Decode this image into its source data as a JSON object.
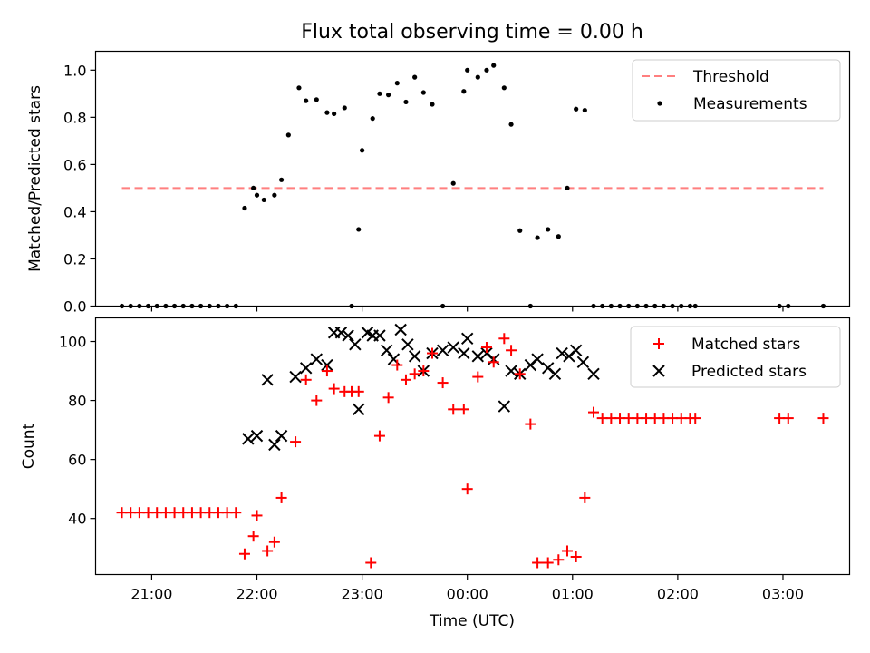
{
  "chart_data": [
    {
      "type": "scatter",
      "title": "Flux total observing time = 0.00 h",
      "xlabel": "",
      "ylabel": "Matched/Predicted stars",
      "ylim": [
        0,
        1.08
      ],
      "yticks": [
        0.0,
        0.2,
        0.4,
        0.6,
        0.8,
        1.0
      ],
      "ytick_labels": [
        "0.0",
        "0.2",
        "0.4",
        "0.6",
        "0.8",
        "1.0"
      ],
      "legend_position": "top-right",
      "threshold": {
        "name": "Threshold",
        "color": "#ff7f7f",
        "style": "dashed",
        "x_start": "20:43",
        "x_end": "03:23",
        "value": 0.5
      },
      "series": [
        {
          "name": "Measurements",
          "color": "#000000",
          "marker": "dot",
          "x": [
            "20:43",
            "20:48",
            "20:53",
            "20:58",
            "21:03",
            "21:08",
            "21:13",
            "21:18",
            "21:23",
            "21:28",
            "21:33",
            "21:38",
            "21:43",
            "21:48",
            "21:53",
            "21:58",
            "22:00",
            "22:04",
            "22:10",
            "22:14",
            "22:18",
            "22:24",
            "22:28",
            "22:34",
            "22:40",
            "22:44",
            "22:50",
            "22:54",
            "22:58",
            "23:00",
            "23:06",
            "23:10",
            "23:15",
            "23:20",
            "23:25",
            "23:30",
            "23:35",
            "23:40",
            "23:46",
            "23:52",
            "23:58",
            "00:00",
            "00:06",
            "00:11",
            "00:15",
            "00:21",
            "00:25",
            "00:30",
            "00:36",
            "00:40",
            "00:46",
            "00:52",
            "00:57",
            "01:02",
            "01:07",
            "01:12",
            "01:17",
            "01:22",
            "01:27",
            "01:32",
            "01:37",
            "01:42",
            "01:47",
            "01:52",
            "01:57",
            "02:02",
            "02:07",
            "02:10",
            "02:58",
            "03:03",
            "03:23"
          ],
          "y": [
            0.0,
            0.0,
            0.0,
            0.0,
            0.0,
            0.0,
            0.0,
            0.0,
            0.0,
            0.0,
            0.0,
            0.0,
            0.0,
            0.0,
            0.415,
            0.5,
            0.47,
            0.45,
            0.47,
            0.535,
            0.725,
            0.925,
            0.87,
            0.875,
            0.82,
            0.815,
            0.84,
            0.0,
            0.325,
            0.66,
            0.795,
            0.9,
            0.895,
            0.945,
            0.865,
            0.97,
            0.905,
            0.855,
            0.0,
            0.52,
            0.91,
            1.0,
            0.97,
            1.0,
            1.02,
            0.925,
            0.77,
            0.32,
            0.0,
            0.29,
            0.325,
            0.295,
            0.5,
            0.835,
            0.83,
            0.0,
            0.0,
            0.0,
            0.0,
            0.0,
            0.0,
            0.0,
            0.0,
            0.0,
            0.0,
            0.0,
            0.0,
            0.0,
            0.0,
            0.0,
            0.0
          ]
        }
      ]
    },
    {
      "type": "scatter",
      "title": "",
      "xlabel": "Time (UTC)",
      "ylabel": "Count",
      "ylim": [
        21,
        108
      ],
      "yticks": [
        40,
        60,
        80,
        100
      ],
      "ytick_labels": [
        "40",
        "60",
        "80",
        "100"
      ],
      "xticks": [
        "21:00",
        "22:00",
        "23:00",
        "00:00",
        "01:00",
        "02:00",
        "03:00"
      ],
      "legend_position": "top-right",
      "series": [
        {
          "name": "Matched stars",
          "color": "#ff0000",
          "marker": "plus",
          "x": [
            "20:43",
            "20:48",
            "20:53",
            "20:58",
            "21:03",
            "21:08",
            "21:13",
            "21:18",
            "21:23",
            "21:28",
            "21:33",
            "21:38",
            "21:43",
            "21:48",
            "21:53",
            "21:58",
            "22:00",
            "22:06",
            "22:10",
            "22:14",
            "22:22",
            "22:28",
            "22:34",
            "22:40",
            "22:44",
            "22:50",
            "22:54",
            "22:58",
            "23:05",
            "23:10",
            "23:15",
            "23:20",
            "23:25",
            "23:30",
            "23:35",
            "23:40",
            "23:46",
            "23:52",
            "23:58",
            "00:00",
            "00:06",
            "00:11",
            "00:15",
            "00:21",
            "00:25",
            "00:30",
            "00:36",
            "00:40",
            "00:46",
            "00:52",
            "00:57",
            "01:02",
            "01:07",
            "01:12",
            "01:17",
            "01:22",
            "01:27",
            "01:32",
            "01:37",
            "01:42",
            "01:47",
            "01:52",
            "01:57",
            "02:02",
            "02:07",
            "02:10",
            "02:58",
            "03:03",
            "03:23"
          ],
          "y": [
            42,
            42,
            42,
            42,
            42,
            42,
            42,
            42,
            42,
            42,
            42,
            42,
            42,
            42,
            28,
            34,
            41,
            29,
            32,
            47,
            66,
            87,
            80,
            90,
            84,
            83,
            83,
            83,
            25,
            68,
            81,
            92,
            87,
            89,
            90,
            96,
            86,
            77,
            77,
            50,
            88,
            98,
            93,
            101,
            97,
            89,
            72,
            25,
            25,
            26,
            29,
            27,
            47,
            76,
            74,
            74,
            74,
            74,
            74,
            74,
            74,
            74,
            74,
            74,
            74,
            74,
            74,
            74,
            74
          ]
        },
        {
          "name": "Predicted stars",
          "color": "#000000",
          "marker": "x",
          "x": [
            "21:55",
            "22:00",
            "22:06",
            "22:10",
            "22:14",
            "22:22",
            "22:28",
            "22:34",
            "22:40",
            "22:44",
            "22:48",
            "22:52",
            "22:56",
            "22:58",
            "23:03",
            "23:06",
            "23:10",
            "23:14",
            "23:18",
            "23:22",
            "23:26",
            "23:30",
            "23:35",
            "23:40",
            "23:46",
            "23:52",
            "23:58",
            "00:00",
            "00:06",
            "00:11",
            "00:15",
            "00:21",
            "00:25",
            "00:30",
            "00:36",
            "00:40",
            "00:46",
            "00:50",
            "00:54",
            "00:58",
            "01:02",
            "01:06",
            "01:12"
          ],
          "y": [
            67,
            68,
            87,
            65,
            68,
            88,
            91,
            94,
            92,
            103,
            103,
            102,
            99,
            77,
            103,
            102,
            102,
            97,
            94,
            104,
            99,
            95,
            90,
            96,
            97,
            98,
            96,
            101,
            95,
            96,
            94,
            78,
            90,
            89,
            92,
            94,
            91,
            89,
            96,
            95,
            97,
            93,
            89
          ]
        }
      ]
    }
  ]
}
